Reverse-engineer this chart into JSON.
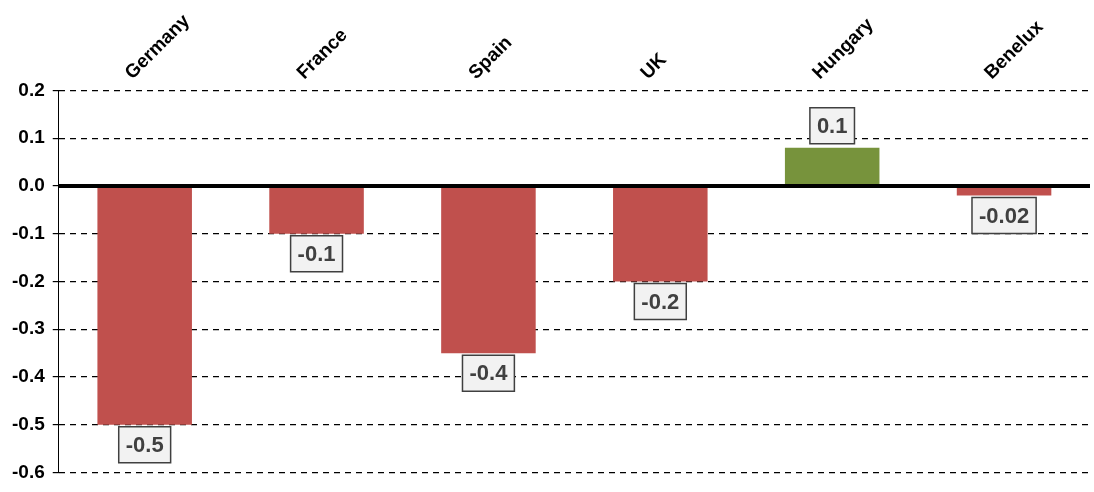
{
  "chart_data": {
    "type": "bar",
    "categories": [
      "Germany",
      "France",
      "Spain",
      "UK",
      "Hungary",
      "Benelux"
    ],
    "values": [
      -0.5,
      -0.1,
      -0.35,
      -0.2,
      0.08,
      -0.02
    ],
    "colors": [
      "#c0504d",
      "#c0504d",
      "#c0504d",
      "#c0504d",
      "#77933c",
      "#c0504d"
    ],
    "value_labels": [
      "-0.5",
      "-0.1",
      "-0.4",
      "-0.2",
      "0.1",
      "-0.02"
    ],
    "ylim": [
      -0.6,
      0.2
    ],
    "yticks": [
      {
        "value": -0.6,
        "label": "-0.6"
      },
      {
        "value": -0.5,
        "label": "-0.5"
      },
      {
        "value": -0.4,
        "label": "-0.4"
      },
      {
        "value": -0.3,
        "label": "-0.3"
      },
      {
        "value": -0.2,
        "label": "-0.2"
      },
      {
        "value": -0.1,
        "label": "-0.1"
      },
      {
        "value": 0,
        "label": "0.0"
      },
      {
        "value": 0.1,
        "label": "0.1"
      },
      {
        "value": 0.2,
        "label": "0.2"
      }
    ],
    "grid": "y",
    "legend": false
  }
}
